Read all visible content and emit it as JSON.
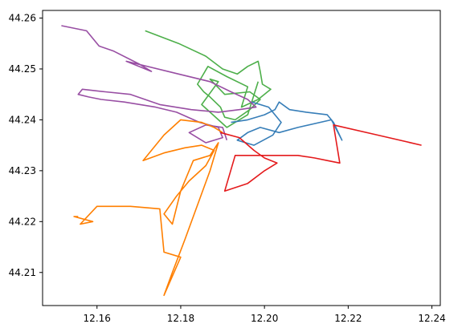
{
  "chart_data": {
    "type": "line",
    "title": "",
    "xlabel": "",
    "ylabel": "",
    "xlim": [
      12.147,
      12.242
    ],
    "ylim": [
      44.2035,
      44.2615
    ],
    "xticks": [
      12.16,
      12.18,
      12.2,
      12.22,
      12.24
    ],
    "yticks": [
      44.21,
      44.22,
      44.23,
      44.24,
      44.25,
      44.26
    ],
    "xtick_labels": [
      "12.16",
      "12.18",
      "12.20",
      "12.22",
      "12.24"
    ],
    "ytick_labels": [
      "44.21",
      "44.22",
      "44.23",
      "44.24",
      "44.25",
      "44.26"
    ],
    "grid": false,
    "series": [
      {
        "color": "#4daf4a",
        "x": [
          12.1715,
          12.1795,
          12.186,
          12.19,
          12.1935,
          12.196,
          12.1985,
          12.199,
          12.1995,
          12.2015,
          12.1985,
          12.1945,
          12.196,
          12.191,
          12.1865,
          12.184,
          12.1855,
          12.187,
          12.1895,
          12.1905,
          12.193,
          12.1965,
          12.199,
          12.1965,
          12.1905,
          12.187,
          12.189,
          12.185,
          12.191,
          12.196,
          12.1985
        ],
        "y": [
          44.2575,
          44.255,
          44.2525,
          44.25,
          44.249,
          44.2505,
          44.2515,
          44.2495,
          44.247,
          44.246,
          44.244,
          44.2425,
          44.2465,
          44.2485,
          44.2505,
          44.247,
          44.2455,
          44.2445,
          44.2425,
          44.2405,
          44.24,
          44.242,
          44.244,
          44.2455,
          44.245,
          44.248,
          44.2475,
          44.243,
          44.2385,
          44.241,
          44.2475
        ]
      },
      {
        "color": "#984ea3",
        "x": [
          12.1515,
          12.1575,
          12.1605,
          12.164,
          12.17,
          12.173,
          12.167,
          12.1795,
          12.187,
          12.192,
          12.196,
          12.198,
          12.194,
          12.189,
          12.1825,
          12.175,
          12.168,
          12.162,
          12.1565,
          12.1555,
          12.158,
          12.161,
          12.1665,
          12.174,
          12.179,
          12.1845,
          12.189,
          12.19,
          12.186,
          12.182,
          12.186,
          12.19,
          12.191
        ],
        "y": [
          44.2585,
          44.2575,
          44.2545,
          44.2535,
          44.251,
          44.2495,
          44.2515,
          44.249,
          44.2475,
          44.2455,
          44.244,
          44.2425,
          44.242,
          44.2415,
          44.242,
          44.243,
          44.245,
          44.2455,
          44.246,
          44.245,
          44.2445,
          44.244,
          44.2435,
          44.2425,
          44.2415,
          44.2395,
          44.2385,
          44.2365,
          44.2355,
          44.2375,
          44.239,
          44.2385,
          44.236
        ]
      },
      {
        "color": "#377eb8",
        "x": [
          12.192,
          12.196,
          12.2,
          12.2025,
          12.2035,
          12.206,
          12.21,
          12.215,
          12.2165,
          12.2185,
          12.216,
          12.208,
          12.2035,
          12.199,
          12.196,
          12.1935,
          12.1975,
          12.202,
          12.204,
          12.201,
          12.197
        ],
        "y": [
          44.2395,
          44.24,
          44.241,
          44.242,
          44.2435,
          44.242,
          44.2415,
          44.241,
          44.2395,
          44.236,
          44.24,
          44.2385,
          44.2375,
          44.2385,
          44.2375,
          44.236,
          44.235,
          44.237,
          44.2395,
          44.2425,
          44.2435
        ]
      },
      {
        "color": "#ff7f00",
        "x": [
          12.19,
          12.188,
          12.185,
          12.18,
          12.176,
          12.171,
          12.176,
          12.181,
          12.185,
          12.188,
          12.186,
          12.182,
          12.179,
          12.176,
          12.178,
          12.18,
          12.183,
          12.187,
          12.189,
          12.187,
          12.181,
          12.178,
          12.176,
          12.18,
          12.176,
          12.175,
          12.168,
          12.16,
          12.156,
          12.159,
          12.1545,
          12.1555
        ],
        "y": [
          44.2375,
          44.2385,
          44.2395,
          44.24,
          44.237,
          44.232,
          44.2335,
          44.2345,
          44.235,
          44.234,
          44.231,
          44.228,
          44.225,
          44.2215,
          44.2195,
          44.226,
          44.232,
          44.233,
          44.2355,
          44.23,
          44.2165,
          44.21,
          44.2055,
          44.213,
          44.214,
          44.2225,
          44.223,
          44.223,
          44.2195,
          44.22,
          44.221,
          44.221
        ]
      },
      {
        "color": "#e41a1c",
        "x": [
          12.1895,
          12.194,
          12.1975,
          12.2,
          12.203,
          12.2,
          12.196,
          12.1905,
          12.193,
          12.2,
          12.208,
          12.212,
          12.215,
          12.218,
          12.2165,
          12.227,
          12.2375
        ],
        "y": [
          44.2375,
          44.2365,
          44.234,
          44.2325,
          44.2315,
          44.23,
          44.2275,
          44.226,
          44.233,
          44.233,
          44.233,
          44.2325,
          44.232,
          44.2315,
          44.239,
          44.237,
          44.235
        ]
      }
    ]
  }
}
